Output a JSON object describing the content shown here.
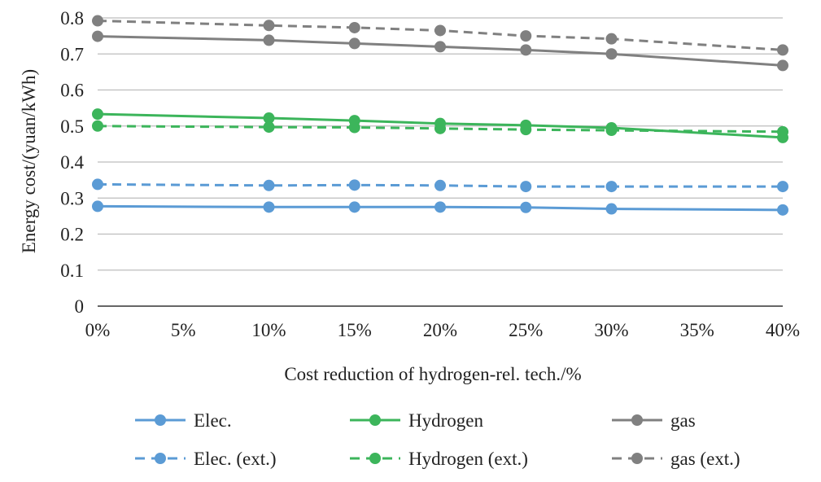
{
  "chart_data": {
    "type": "line",
    "title": "",
    "xlabel": "Cost reduction of hydrogen-rel. tech./%",
    "ylabel": "Energy cost/(yuan/kWh)",
    "ylim": [
      0,
      0.8
    ],
    "yticks": [
      "0",
      "0.1",
      "0.2",
      "0.3",
      "0.4",
      "0.5",
      "0.6",
      "0.7",
      "0.8"
    ],
    "categories": [
      "0%",
      "5%",
      "10%",
      "15%",
      "20%",
      "25%",
      "30%",
      "35%",
      "40%"
    ],
    "x": [
      0,
      5,
      10,
      15,
      20,
      25,
      30,
      35,
      40
    ],
    "grid": true,
    "legend_position": "bottom",
    "series": [
      {
        "name": "Elec.",
        "color": "#5b9bd5",
        "dash": false,
        "x": [
          0,
          10,
          15,
          20,
          25,
          30,
          40
        ],
        "values": [
          0.277,
          0.275,
          0.275,
          0.275,
          0.274,
          0.27,
          0.267
        ]
      },
      {
        "name": "Hydrogen",
        "color": "#3cb55b",
        "dash": false,
        "x": [
          0,
          10,
          15,
          20,
          25,
          30,
          40
        ],
        "values": [
          0.533,
          0.522,
          0.515,
          0.507,
          0.502,
          0.495,
          0.468
        ]
      },
      {
        "name": "gas",
        "color": "#808080",
        "dash": false,
        "x": [
          0,
          10,
          15,
          20,
          25,
          30,
          40
        ],
        "values": [
          0.749,
          0.738,
          0.729,
          0.72,
          0.711,
          0.7,
          0.668
        ]
      },
      {
        "name": "Elec. (ext.)",
        "color": "#5b9bd5",
        "dash": true,
        "x": [
          0,
          10,
          15,
          20,
          25,
          30,
          40
        ],
        "values": [
          0.338,
          0.335,
          0.336,
          0.335,
          0.332,
          0.332,
          0.332
        ]
      },
      {
        "name": "Hydrogen (ext.)",
        "color": "#3cb55b",
        "dash": true,
        "x": [
          0,
          10,
          15,
          20,
          25,
          30,
          40
        ],
        "values": [
          0.5,
          0.497,
          0.496,
          0.493,
          0.49,
          0.488,
          0.484
        ]
      },
      {
        "name": "gas (ext.)",
        "color": "#808080",
        "dash": true,
        "x": [
          0,
          10,
          15,
          20,
          25,
          30,
          40
        ],
        "values": [
          0.792,
          0.779,
          0.773,
          0.765,
          0.75,
          0.742,
          0.711
        ]
      }
    ]
  }
}
